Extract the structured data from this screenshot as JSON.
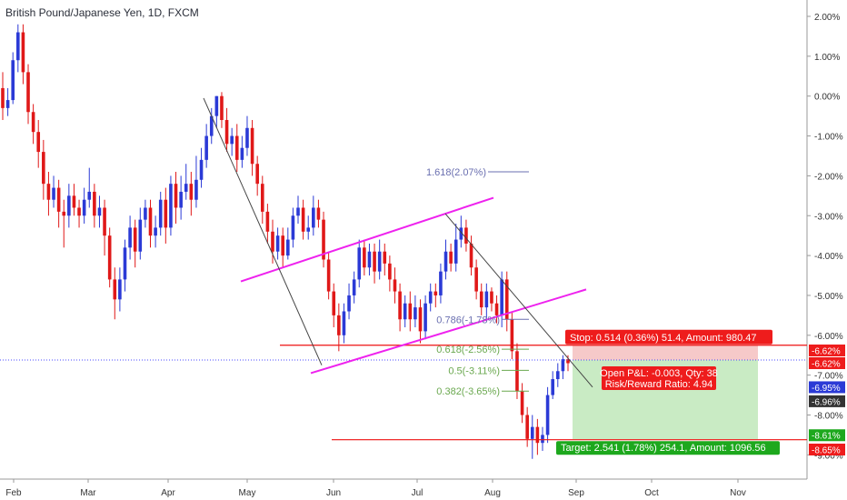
{
  "symbol_title": "British Pound/Japanese Yen, 1D, FXCM",
  "colors": {
    "up": "#2b3ad6",
    "down": "#e01818",
    "channel": "#ee22ee",
    "stop_zone": "#f6c9c9",
    "target_zone": "#c9ebc4",
    "red_line": "#ee1111",
    "trend_line": "#444444",
    "fib_green": "#6aa84f",
    "fib_blue": "#6a6fb0",
    "axis_text": "#333333",
    "dotted": "#4b4bff"
  },
  "chart_data": {
    "type": "candlestick",
    "x_labels": [
      "Feb",
      "Mar",
      "Apr",
      "May",
      "Jun",
      "Jul",
      "Aug",
      "Sep",
      "Oct",
      "Nov"
    ],
    "y_axis": {
      "unit": "%",
      "ticks": [
        "2.00%",
        "1.00%",
        "0.00%",
        "-1.00%",
        "-2.00%",
        "-3.00%",
        "-4.00%",
        "-5.00%",
        "-6.00%",
        "-7.00%",
        "-8.00%",
        "-9.00%"
      ],
      "tick_values": [
        2,
        1,
        0,
        -1,
        -2,
        -3,
        -4,
        -5,
        -6,
        -7,
        -8,
        -9
      ],
      "range": [
        -9.9,
        2.4
      ]
    },
    "price_labels": [
      {
        "text": "-6.62%",
        "value": -6.62,
        "style": "red"
      },
      {
        "text": "-6.62%",
        "value": -6.62,
        "style": "red"
      },
      {
        "text": "-6.95%",
        "value": -6.95,
        "style": "blue"
      },
      {
        "text": "-6.96%",
        "value": -6.96,
        "style": "dark"
      },
      {
        "text": "-8.61%",
        "value": -8.61,
        "style": "green"
      },
      {
        "text": "-8.65%",
        "value": -8.65,
        "style": "red"
      }
    ],
    "fib_levels": [
      {
        "label": "1.618(2.07%)",
        "value": -1.9,
        "color": "blue"
      },
      {
        "label": "0.786(-1.78%)",
        "value": -5.6,
        "color": "blue"
      },
      {
        "label": "0.618(-2.56%)",
        "value": -6.35,
        "color": "green"
      },
      {
        "label": "0.5(-3.11%)",
        "value": -6.88,
        "color": "green"
      },
      {
        "label": "0.382(-3.65%)",
        "value": -7.4,
        "color": "green"
      }
    ],
    "trade": {
      "stop_label": "Stop: 0.514 (0.36%) 51.4, Amount: 980.47",
      "pnl_label": "Open P&L: -0.003, Qty: 38",
      "rr_label": "Risk/Reward Ratio: 4.94",
      "target_label": "Target: 2.541 (1.78%) 254.1, Amount: 1096.56",
      "entry": -6.62,
      "stop": -6.25,
      "target": -8.61
    },
    "candles": [
      [
        0.2,
        -0.3,
        0.6,
        -0.6
      ],
      [
        -0.3,
        -0.1,
        0.2,
        -0.5
      ],
      [
        -0.1,
        0.9,
        1.1,
        -0.2
      ],
      [
        0.9,
        1.6,
        1.8,
        0.6
      ],
      [
        1.6,
        0.6,
        1.8,
        0.3
      ],
      [
        0.6,
        -0.4,
        0.8,
        -0.7
      ],
      [
        -0.4,
        -0.9,
        -0.2,
        -1.2
      ],
      [
        -0.9,
        -1.4,
        -0.6,
        -1.8
      ],
      [
        -1.4,
        -2.2,
        -1.1,
        -2.6
      ],
      [
        -2.2,
        -2.6,
        -1.9,
        -3.0
      ],
      [
        -2.6,
        -2.3,
        -2.0,
        -2.8
      ],
      [
        -2.3,
        -2.9,
        -2.1,
        -3.3
      ],
      [
        -2.9,
        -3.0,
        -2.6,
        -3.8
      ],
      [
        -3.0,
        -2.5,
        -2.2,
        -3.3
      ],
      [
        -2.5,
        -2.8,
        -2.2,
        -3.0
      ],
      [
        -2.8,
        -3.0,
        -2.6,
        -3.3
      ],
      [
        -3.0,
        -2.6,
        -2.3,
        -3.2
      ],
      [
        -2.6,
        -2.4,
        -1.8,
        -2.8
      ],
      [
        -2.4,
        -3.0,
        -2.2,
        -3.3
      ],
      [
        -3.0,
        -2.8,
        -2.5,
        -3.3
      ],
      [
        -2.8,
        -3.5,
        -2.6,
        -4.0
      ],
      [
        -3.5,
        -4.6,
        -3.3,
        -4.8
      ],
      [
        -4.6,
        -5.1,
        -4.3,
        -5.6
      ],
      [
        -5.1,
        -4.6,
        -4.3,
        -5.4
      ],
      [
        -4.6,
        -3.8,
        -3.6,
        -4.9
      ],
      [
        -3.8,
        -3.3,
        -3.0,
        -4.1
      ],
      [
        -3.3,
        -3.9,
        -3.1,
        -4.3
      ],
      [
        -3.9,
        -3.1,
        -2.8,
        -4.1
      ],
      [
        -3.1,
        -2.8,
        -2.6,
        -3.3
      ],
      [
        -2.8,
        -3.5,
        -2.6,
        -3.8
      ],
      [
        -3.5,
        -3.3,
        -3.0,
        -3.8
      ],
      [
        -3.3,
        -2.6,
        -2.4,
        -3.5
      ],
      [
        -2.6,
        -3.3,
        -2.3,
        -3.7
      ],
      [
        -3.3,
        -2.2,
        -2.0,
        -3.5
      ],
      [
        -2.2,
        -2.8,
        -1.9,
        -3.2
      ],
      [
        -2.8,
        -2.4,
        -2.0,
        -3.1
      ],
      [
        -2.4,
        -2.2,
        -1.7,
        -2.6
      ],
      [
        -2.2,
        -2.6,
        -1.9,
        -3.0
      ],
      [
        -2.6,
        -2.1,
        -1.5,
        -2.8
      ],
      [
        -2.1,
        -1.6,
        -1.3,
        -2.3
      ],
      [
        -1.6,
        -1.0,
        -0.7,
        -1.8
      ],
      [
        -1.0,
        -0.5,
        -0.3,
        -1.2
      ],
      [
        -0.5,
        -0.0,
        0.0,
        -0.8
      ],
      [
        0.0,
        -0.6,
        0.1,
        -0.8
      ],
      [
        -0.6,
        -1.2,
        -0.3,
        -1.4
      ],
      [
        -1.2,
        -1.0,
        -0.8,
        -1.5
      ],
      [
        -1.0,
        -1.6,
        -0.7,
        -1.9
      ],
      [
        -1.6,
        -1.3,
        -1.0,
        -1.8
      ],
      [
        -1.3,
        -0.8,
        -0.5,
        -1.5
      ],
      [
        -0.8,
        -1.7,
        -0.6,
        -2.0
      ],
      [
        -1.7,
        -2.2,
        -1.5,
        -2.5
      ],
      [
        -2.2,
        -2.9,
        -2.0,
        -3.2
      ],
      [
        -2.9,
        -3.4,
        -2.7,
        -3.7
      ],
      [
        -3.4,
        -3.9,
        -3.1,
        -4.2
      ],
      [
        -3.9,
        -3.5,
        -3.3,
        -4.1
      ],
      [
        -3.5,
        -4.0,
        -3.3,
        -4.3
      ],
      [
        -4.0,
        -3.6,
        -3.3,
        -4.1
      ],
      [
        -3.6,
        -3.0,
        -2.8,
        -3.8
      ],
      [
        -3.0,
        -2.8,
        -2.5,
        -3.2
      ],
      [
        -2.8,
        -3.4,
        -2.6,
        -3.6
      ],
      [
        -3.4,
        -3.3,
        -3.0,
        -3.6
      ],
      [
        -3.3,
        -2.8,
        -2.5,
        -3.5
      ],
      [
        -2.8,
        -3.1,
        -2.6,
        -3.3
      ],
      [
        -3.1,
        -4.1,
        -2.9,
        -4.3
      ],
      [
        -4.1,
        -4.9,
        -3.9,
        -5.1
      ],
      [
        -4.9,
        -5.5,
        -4.7,
        -5.8
      ],
      [
        -5.5,
        -6.0,
        -5.2,
        -6.4
      ],
      [
        -6.0,
        -5.4,
        -5.2,
        -6.2
      ],
      [
        -5.4,
        -5.0,
        -4.7,
        -5.6
      ],
      [
        -5.0,
        -4.6,
        -4.4,
        -5.2
      ],
      [
        -4.6,
        -3.8,
        -3.6,
        -4.8
      ],
      [
        -3.8,
        -4.3,
        -3.6,
        -4.5
      ],
      [
        -4.3,
        -3.9,
        -3.7,
        -4.5
      ],
      [
        -3.9,
        -4.4,
        -3.7,
        -4.7
      ],
      [
        -4.4,
        -3.9,
        -3.6,
        -4.6
      ],
      [
        -3.9,
        -4.2,
        -3.7,
        -4.5
      ],
      [
        -4.2,
        -4.6,
        -4.0,
        -4.9
      ],
      [
        -4.6,
        -4.9,
        -4.3,
        -5.2
      ],
      [
        -4.9,
        -5.6,
        -4.7,
        -5.9
      ],
      [
        -5.6,
        -5.2,
        -5.0,
        -5.8
      ],
      [
        -5.2,
        -5.6,
        -4.9,
        -5.9
      ],
      [
        -5.6,
        -5.3,
        -5.0,
        -5.8
      ],
      [
        -5.3,
        -5.9,
        -5.1,
        -6.2
      ],
      [
        -5.9,
        -5.2,
        -5.0,
        -6.1
      ],
      [
        -5.2,
        -4.9,
        -4.7,
        -5.4
      ],
      [
        -4.9,
        -5.0,
        -4.7,
        -5.3
      ],
      [
        -5.0,
        -4.4,
        -4.2,
        -5.2
      ],
      [
        -4.4,
        -3.9,
        -3.6,
        -4.6
      ],
      [
        -3.9,
        -4.2,
        -3.7,
        -4.4
      ],
      [
        -4.2,
        -3.6,
        -3.2,
        -4.4
      ],
      [
        -3.6,
        -3.3,
        -3.0,
        -3.8
      ],
      [
        -3.3,
        -3.7,
        -3.1,
        -3.9
      ],
      [
        -3.7,
        -4.3,
        -3.5,
        -4.5
      ],
      [
        -4.3,
        -4.9,
        -4.1,
        -5.1
      ],
      [
        -4.9,
        -5.3,
        -4.7,
        -5.5
      ],
      [
        -5.3,
        -4.9,
        -4.7,
        -5.6
      ],
      [
        -4.9,
        -5.2,
        -4.8,
        -5.4
      ],
      [
        -5.2,
        -5.5,
        -5.0,
        -5.7
      ],
      [
        -5.5,
        -4.6,
        -4.4,
        -5.8
      ],
      [
        -4.6,
        -5.6,
        -4.4,
        -5.9
      ],
      [
        -5.6,
        -6.4,
        -5.4,
        -6.6
      ],
      [
        -6.4,
        -7.4,
        -6.2,
        -7.6
      ],
      [
        -7.4,
        -8.0,
        -7.2,
        -8.2
      ],
      [
        -8.0,
        -8.6,
        -7.8,
        -8.8
      ],
      [
        -8.6,
        -8.3,
        -8.0,
        -9.1
      ],
      [
        -8.3,
        -8.7,
        -8.1,
        -9.0
      ],
      [
        -8.7,
        -8.5,
        -8.3,
        -8.9
      ],
      [
        -8.5,
        -7.5,
        -7.3,
        -8.7
      ],
      [
        -7.5,
        -7.1,
        -6.9,
        -7.6
      ],
      [
        -7.1,
        -6.9,
        -6.7,
        -7.3
      ],
      [
        -6.9,
        -6.6,
        -6.5,
        -7.1
      ],
      [
        -6.6,
        -6.7,
        -6.5,
        -6.9
      ]
    ]
  }
}
